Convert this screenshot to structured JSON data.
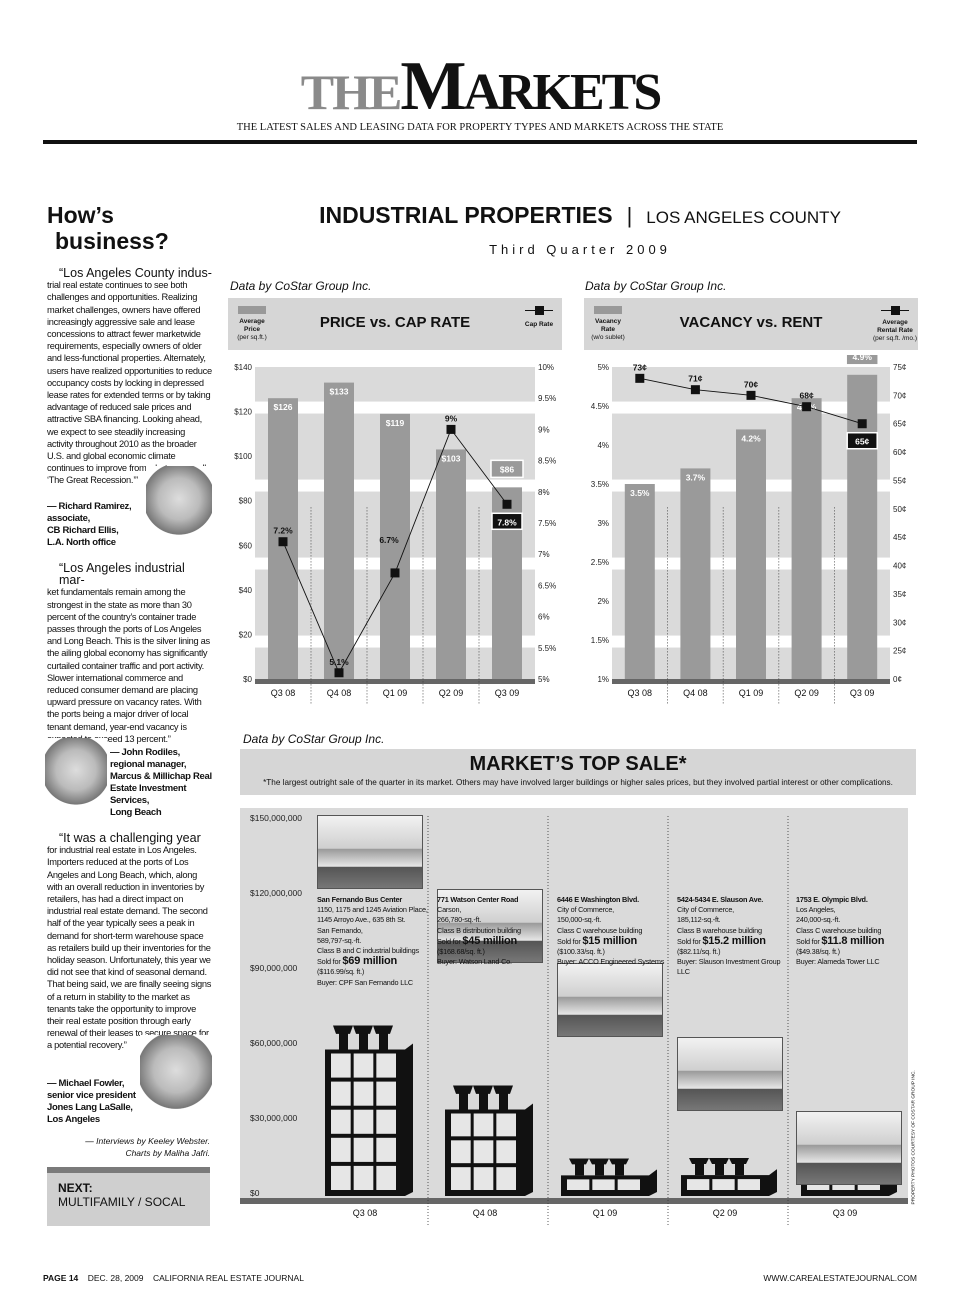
{
  "header": {
    "logo_the": "THE",
    "logo_m": "M",
    "logo_arkets": "ARKETS",
    "tagline": "THE LATEST SALES AND LEASING DATA FOR PROPERTY TYPES AND MARKETS ACROSS THE STATE"
  },
  "sidebar": {
    "title_line1": "How’s",
    "title_line2": "business?",
    "quotes": [
      {
        "lead": "“Los Angeles County indus-",
        "body": "trial real estate continues to see both challenges and opportunities. Realizing market challenges, owners have offered increasingly aggressive sale and lease concessions to attract fewer marketwide requirements, especially owners of older and less-functional properties. Alternately, users have realized opportunities to reduce occupancy costs by locking in depressed lease rates for extended terms or by taking advantage of reduced sale prices and attractive SBA financing. Looking ahead, we expect to see steadily increasing activity throughout 2010 as the broader U.S. and global economic climate continues to improve from what some call ‘The Great Recession.’”",
        "attribution": [
          "— Richard Ramirez,",
          "associate,",
          "CB Richard Ellis,",
          "L.A. North office"
        ]
      },
      {
        "lead": "“Los Angeles industrial mar-",
        "body": "ket fundamentals remain among the strongest in the state as more than 30 percent of the country’s container trade passes through the ports of Los Angeles and Long Beach. This is the silver lining as the ailing global economy has significantly curtailed container traffic and port activity. Slower international commerce and reduced consumer demand are placing upward pressure on vacancy rates. With the ports being a major driver of local tenant demand, year-end vacancy is expected to exceed 13 percent.”",
        "attribution": [
          "— John Rodiles,",
          "regional manager,",
          "Marcus & Millichap Real",
          "Estate Investment",
          "Services,",
          "Long Beach"
        ]
      },
      {
        "lead": "“It was a challenging year",
        "body": "for industrial real estate in Los Angeles. Importers reduced at the ports of Los Angeles and Long Beach, which, along with an overall reduction in inventories by retailers, has had a direct impact on industrial real estate demand. The second half of the year typically sees a peak in demand for short-term warehouse space as retailers build up their inventories for the holiday season. Unfortunately, this year we did not see that kind of seasonal demand. That being said, we are finally seeing signs of a return in stability to the market as tenants take the opportunity to improve their real estate position through early renewal of their leases to secure space for a potential recovery.”",
        "attribution": [
          "— Michael Fowler,",
          "senior vice president",
          "Jones Lang LaSalle,",
          "Los Angeles"
        ]
      }
    ],
    "credits_line1": "— Interviews by Keeley Webster.",
    "credits_line2": "Charts by Maliha Jafri.",
    "next_label": "NEXT:",
    "next_value": "MULTIFAMILY / SOCAL"
  },
  "section": {
    "title": "INDUSTRIAL PROPERTIES",
    "separator": "|",
    "region": "LOS ANGELES COUNTY",
    "period": "Third Quarter 2009"
  },
  "chart_data": [
    {
      "type": "bar+line",
      "source": "Data by CoStar Group Inc.",
      "title": "PRICE vs. CAP RATE",
      "legend_bar": [
        "Average",
        "Price",
        "(per sq.ft.)"
      ],
      "legend_line": "Cap Rate",
      "categories": [
        "Q3 08",
        "Q4 08",
        "Q1 09",
        "Q2 09",
        "Q3 09"
      ],
      "bar_series": {
        "values": [
          126,
          133,
          119,
          103,
          86
        ],
        "labels": [
          "$126",
          "$133",
          "$119",
          "$103",
          "$86"
        ]
      },
      "line_series": {
        "values": [
          7.2,
          5.1,
          6.7,
          9.0,
          7.8
        ],
        "labels": [
          "7.2%",
          "5.1%",
          "6.7%",
          "9%",
          "7.8%"
        ]
      },
      "ylim": [
        0,
        140
      ],
      "y_ticks": [
        "$0",
        "$20",
        "$40",
        "$60",
        "$80",
        "$100",
        "$120",
        "$140"
      ],
      "y2lim": [
        5,
        10
      ],
      "y2_ticks": [
        "5%",
        "5.5%",
        "6%",
        "6.5%",
        "7%",
        "7.5%",
        "8%",
        "8.5%",
        "9%",
        "9.5%",
        "10%"
      ],
      "colors": {
        "bar": "#9a9a9a",
        "line": "#111111",
        "plot_bg": "#dadada"
      }
    },
    {
      "type": "bar+line",
      "source": "Data by CoStar Group Inc.",
      "title": "VACANCY vs. RENT",
      "legend_bar": [
        "Vacancy",
        "Rate",
        "(w/o sublet)"
      ],
      "legend_line": [
        "Average",
        "Rental Rate",
        "(per sq.ft. /mo.)"
      ],
      "categories": [
        "Q3 08",
        "Q4 08",
        "Q1 09",
        "Q2 09",
        "Q3 09"
      ],
      "bar_series": {
        "values": [
          3.5,
          3.7,
          4.2,
          4.6,
          4.9
        ],
        "labels": [
          "3.5%",
          "3.7%",
          "4.2%",
          "4.6%",
          "4.9%"
        ]
      },
      "line_series": {
        "values": [
          73,
          71,
          70,
          68,
          65
        ],
        "labels": [
          "73¢",
          "71¢",
          "70¢",
          "68¢",
          "65¢"
        ]
      },
      "ylim": [
        1,
        5
      ],
      "y_ticks": [
        "1%",
        "1.5%",
        "2%",
        "2.5%",
        "3%",
        "3.5%",
        "4%",
        "4.5%",
        "5%"
      ],
      "y2_ticks": [
        "0¢",
        "25¢",
        "30¢",
        "35¢",
        "40¢",
        "45¢",
        "50¢",
        "55¢",
        "60¢",
        "65¢",
        "70¢",
        "75¢"
      ],
      "colors": {
        "bar": "#9a9a9a",
        "line": "#111111",
        "plot_bg": "#dadada"
      }
    },
    {
      "type": "pictogram-bar",
      "source": "Data by CoStar Group Inc.",
      "title": "MARKET’S TOP SALE*",
      "note": "*The largest outright sale of the quarter in its market.  Others may have involved larger buildings or higher sales prices, but they involved partial interest or other complications.",
      "categories": [
        "Q3 08",
        "Q4 08",
        "Q1 09",
        "Q2 09",
        "Q3 09"
      ],
      "values": [
        69000000,
        45000000,
        15000000,
        15200000,
        11800000
      ],
      "ylim": [
        0,
        150000000
      ],
      "y_ticks": [
        "$0",
        "$30,000,000",
        "$60,000,000",
        "$90,000,000",
        "$120,000,000",
        "$150,000,000"
      ],
      "sales": [
        {
          "name": "San Fernando Bus Center",
          "lines": [
            "1150, 1175 and 1245 Aviation Place, 1145 Arroyo Ave., 635 8th St.",
            "San Fernando,",
            "589,797-sq.-ft.",
            "Class B and C industrial buildings"
          ],
          "sold_prefix": "Sold for",
          "price": "$69 million",
          "per_sqft": "($116.99/sq. ft.)",
          "buyer": "Buyer: CPF San Fernando LLC"
        },
        {
          "name": "771 Watson Center Road",
          "lines": [
            "Carson,",
            "266,780-sq.-ft.",
            "Class B distribution building"
          ],
          "sold_prefix": "Sold for",
          "price": "$45 million",
          "per_sqft": "($168.68/sq. ft.)",
          "buyer": "Buyer: Watson Land Co."
        },
        {
          "name": "6446 E Washington Blvd.",
          "lines": [
            "City of Commerce,",
            "150,000-sq.-ft.",
            "Class C warehouse building"
          ],
          "sold_prefix": "Sold for",
          "price": "$15 million",
          "per_sqft": "($100.33/sq. ft.)",
          "buyer": "Buyer: ACCO Engineered Systems"
        },
        {
          "name": "5424-5434 E. Slauson Ave.",
          "lines": [
            "City of Commerce,",
            "185,112-sq.-ft.",
            "Class B warehouse building"
          ],
          "sold_prefix": "Sold for",
          "price": "$15.2 million",
          "per_sqft": "($82.11/sq. ft.)",
          "buyer": "Buyer: Slauson Investment Group LLC"
        },
        {
          "name": "1753 E. Olympic Blvd.",
          "lines": [
            "Los Angeles,",
            "240,000-sq.-ft.",
            "Class C warehouse building"
          ],
          "sold_prefix": "Sold for",
          "price": "$11.8 million",
          "per_sqft": "($49.38/sq. ft.)",
          "buyer": "Buyer: Alameda Tower LLC"
        }
      ],
      "photo_credit": "PROPERTY PHOTOS COURTESY OF COSTAR GROUP INC.",
      "colors": {
        "plot_bg": "#dadada",
        "icon": "#111111"
      }
    }
  ],
  "footer": {
    "page": "PAGE 14",
    "date": "DEC. 28, 2009",
    "publication": "CALIFORNIA REAL ESTATE JOURNAL",
    "url": "WWW.CAREALESTATEJOURNAL.COM"
  }
}
